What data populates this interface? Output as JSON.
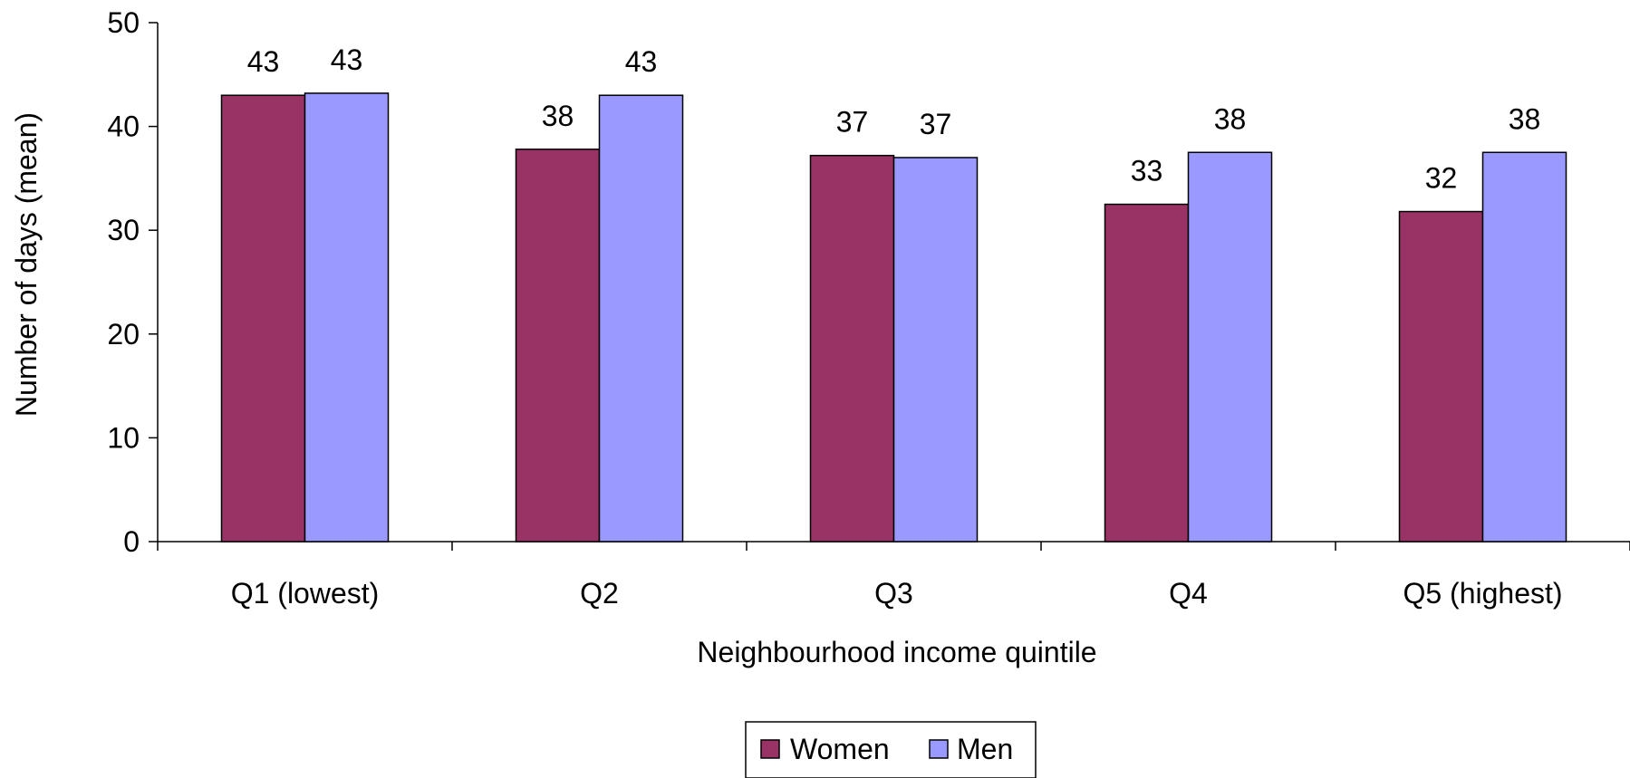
{
  "chart_data": {
    "type": "bar",
    "xlabel": "Neighbourhood income quintile",
    "ylabel": "Number of days (mean)",
    "ylim": [
      0,
      50
    ],
    "yticks": [
      0,
      10,
      20,
      30,
      40,
      50
    ],
    "categories": [
      "Q1 (lowest)",
      "Q2",
      "Q3",
      "Q4",
      "Q5 (highest)"
    ],
    "series": [
      {
        "name": "Women",
        "color": "#993366",
        "values": [
          43,
          37.8,
          37.2,
          32.5,
          31.8
        ],
        "labels": [
          "43",
          "38",
          "37",
          "33",
          "32"
        ]
      },
      {
        "name": "Men",
        "color": "#9999ff",
        "values": [
          43.2,
          43,
          37,
          37.5,
          37.5
        ],
        "labels": [
          "43",
          "43",
          "37",
          "38",
          "38"
        ]
      }
    ],
    "grid": false,
    "legend_position": "bottom"
  }
}
